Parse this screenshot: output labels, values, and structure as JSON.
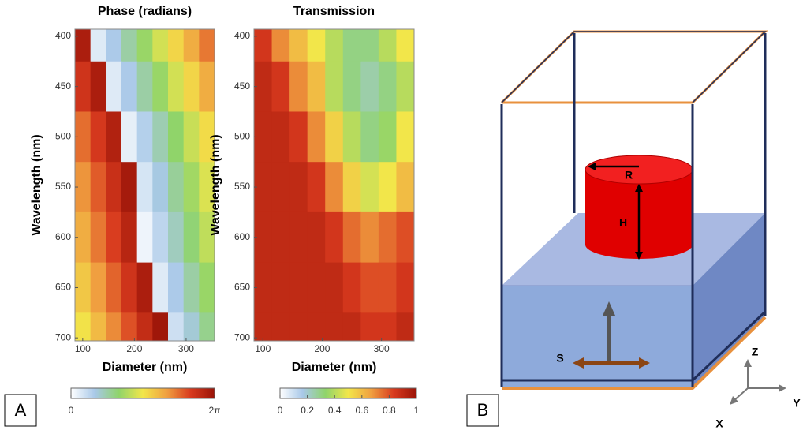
{
  "figure": {
    "panel_a_label": "A",
    "panel_b_label": "B"
  },
  "chart_data": [
    {
      "type": "heatmap",
      "title": "Phase (radians)",
      "xlabel": "Diameter (nm)",
      "ylabel": "Wavelength (nm)",
      "x": [
        100,
        130,
        160,
        190,
        220,
        250,
        280,
        310,
        340
      ],
      "y": [
        400,
        450,
        500,
        550,
        600,
        650,
        700
      ],
      "z": [
        [
          6.0,
          0.4,
          1.0,
          1.6,
          2.2,
          2.8,
          3.4,
          4.0,
          4.6
        ],
        [
          5.4,
          6.0,
          0.4,
          1.0,
          1.6,
          2.2,
          2.8,
          3.4,
          4.0
        ],
        [
          4.7,
          5.3,
          5.9,
          0.3,
          0.9,
          1.5,
          2.1,
          2.7,
          3.3
        ],
        [
          4.3,
          4.9,
          5.5,
          6.1,
          0.5,
          1.1,
          1.7,
          2.3,
          2.9
        ],
        [
          4.0,
          4.6,
          5.2,
          5.8,
          0.2,
          0.8,
          1.4,
          2.0,
          2.6
        ],
        [
          3.6,
          4.2,
          4.8,
          5.4,
          6.0,
          0.4,
          1.0,
          1.6,
          2.2
        ],
        [
          3.2,
          3.8,
          4.4,
          5.0,
          5.6,
          6.2,
          0.6,
          1.2,
          1.8
        ]
      ],
      "xlim": [
        85,
        355
      ],
      "ylim": [
        703,
        393
      ],
      "xticks": [
        100,
        200,
        300
      ],
      "yticks": [
        400,
        450,
        500,
        550,
        600,
        650,
        700
      ],
      "zlim": [
        0,
        6.283
      ],
      "zticks": [
        0,
        {
          "value": 6.283,
          "label": "2π"
        }
      ],
      "colorscale": [
        "#ffffff",
        "#a8c8e8",
        "#8fd46a",
        "#f2e64a",
        "#f0a040",
        "#d83a1e",
        "#9a1408"
      ]
    },
    {
      "type": "heatmap",
      "title": "Transmission",
      "xlabel": "Diameter (nm)",
      "ylabel": "Wavelength (nm)",
      "x": [
        100,
        130,
        160,
        190,
        220,
        250,
        280,
        310,
        340
      ],
      "y": [
        400,
        450,
        500,
        550,
        600,
        650,
        700
      ],
      "z": [
        [
          0.85,
          0.7,
          0.6,
          0.5,
          0.4,
          0.3,
          0.3,
          0.4,
          0.5
        ],
        [
          0.9,
          0.85,
          0.7,
          0.6,
          0.4,
          0.3,
          0.25,
          0.3,
          0.4
        ],
        [
          0.9,
          0.9,
          0.85,
          0.7,
          0.55,
          0.4,
          0.3,
          0.35,
          0.5
        ],
        [
          0.9,
          0.9,
          0.9,
          0.85,
          0.7,
          0.55,
          0.45,
          0.5,
          0.6
        ],
        [
          0.9,
          0.9,
          0.9,
          0.9,
          0.85,
          0.75,
          0.7,
          0.75,
          0.8
        ],
        [
          0.9,
          0.9,
          0.9,
          0.9,
          0.9,
          0.85,
          0.8,
          0.8,
          0.85
        ],
        [
          0.9,
          0.9,
          0.9,
          0.9,
          0.9,
          0.9,
          0.85,
          0.85,
          0.9
        ]
      ],
      "xlim": [
        85,
        355
      ],
      "ylim": [
        703,
        393
      ],
      "xticks": [
        100,
        200,
        300
      ],
      "yticks": [
        400,
        450,
        500,
        550,
        600,
        650,
        700
      ],
      "zlim": [
        0,
        1
      ],
      "zticks": [
        0,
        0.2,
        0.4,
        0.6,
        0.8,
        1
      ],
      "colorscale": [
        "#ffffff",
        "#a8c8e8",
        "#8fd46a",
        "#f2e64a",
        "#f0a040",
        "#d83a1e",
        "#9a1408"
      ]
    }
  ],
  "diagram": {
    "radius": "R",
    "height": "H",
    "source": "S",
    "z_axis": "Z",
    "y_axis": "Y",
    "x_axis": "X"
  }
}
